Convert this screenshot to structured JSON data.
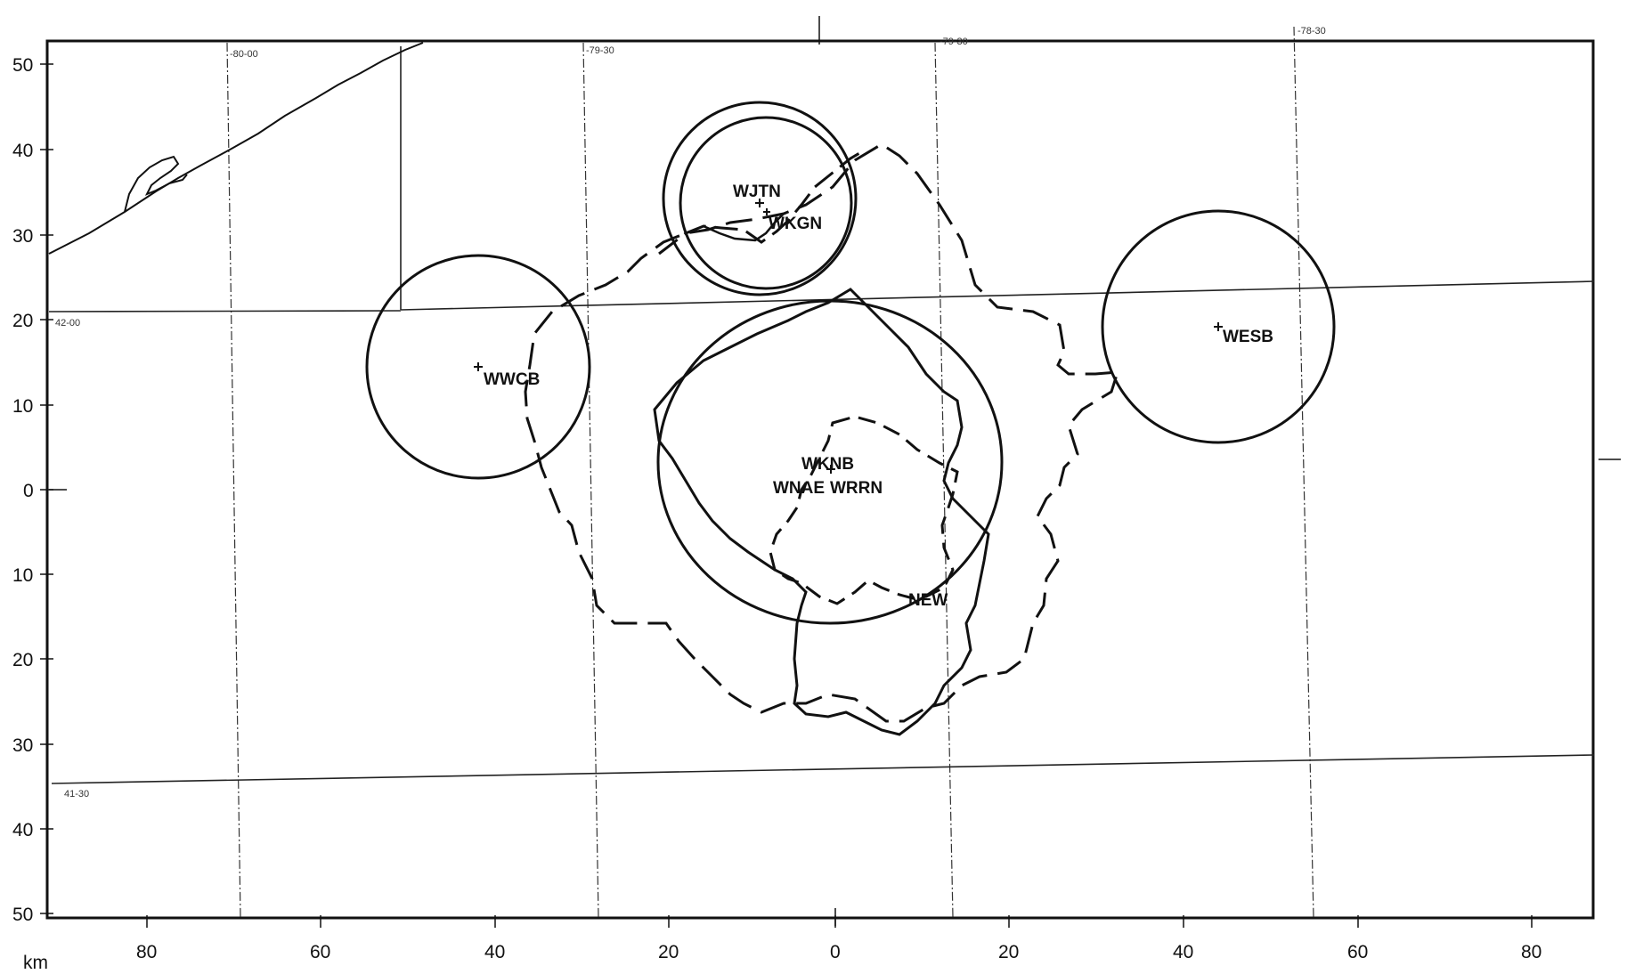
{
  "map": {
    "unit_label": "km",
    "x_ticks": [
      "80",
      "60",
      "40",
      "20",
      "0",
      "20",
      "40",
      "60",
      "80"
    ],
    "y_ticks": [
      "50",
      "40",
      "30",
      "20",
      "10",
      "0",
      "10",
      "20",
      "30",
      "40",
      "50"
    ],
    "grid_labels": {
      "lon_80_00": "-80-00",
      "lon_79_30_left": "-79-30",
      "lon_79_30_right": "-79-30",
      "lon_78_30": "-78-30",
      "lat_42_00": "42-00",
      "lat_41_30": "41-30"
    },
    "stations": {
      "wjtn": "WJTN",
      "wkgn": "WKGN",
      "wwcb": "WWCB",
      "wesb": "WESB",
      "wknb": "WKNB",
      "wnae": "WNAE",
      "wrrn": "WRRN",
      "new": "NEW"
    }
  }
}
